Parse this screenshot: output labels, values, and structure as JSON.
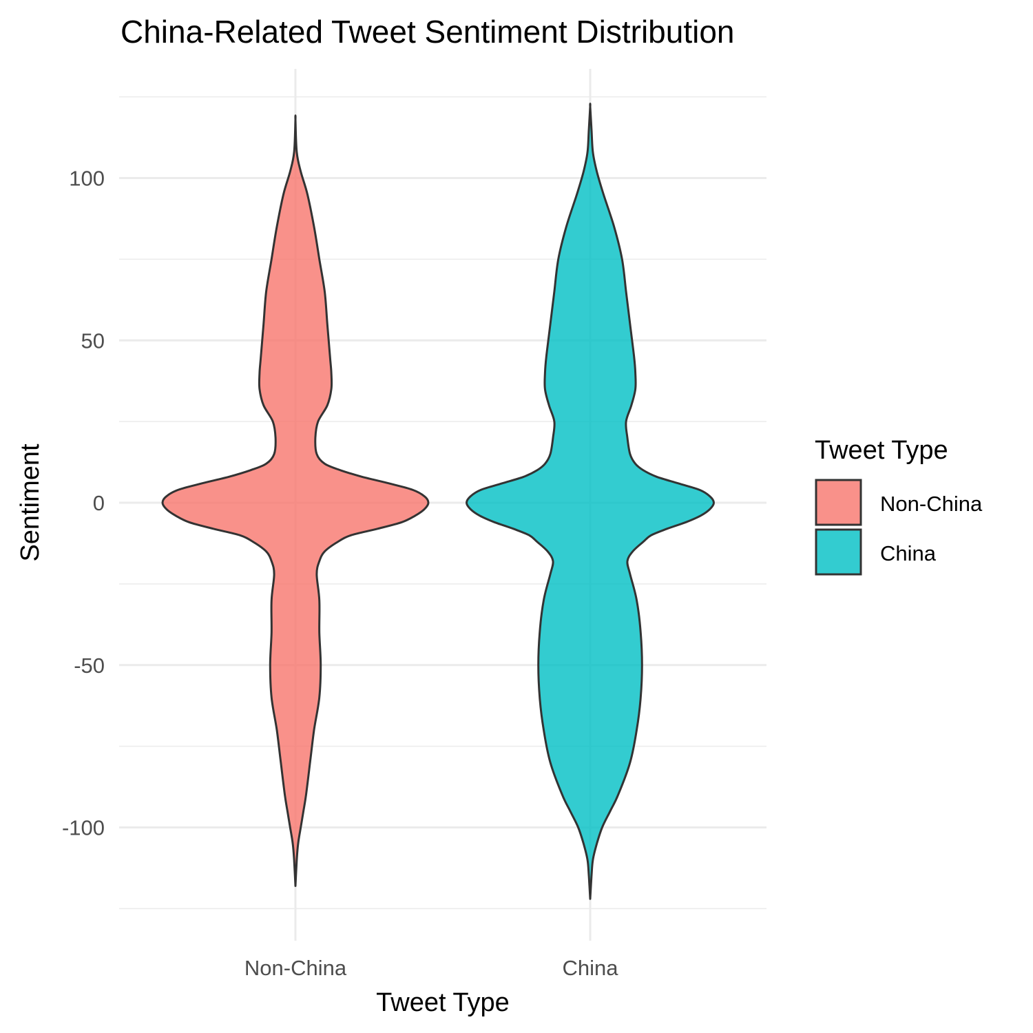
{
  "chart_data": {
    "type": "violin",
    "title": "China-Related Tweet Sentiment Distribution",
    "xlabel": "Tweet Type",
    "ylabel": "Sentiment",
    "categories": [
      "Non-China",
      "China"
    ],
    "y_ticks": [
      -100,
      -50,
      0,
      50,
      100
    ],
    "ylim": [
      -125,
      125
    ],
    "grid": true,
    "legend": {
      "title": "Tweet Type",
      "position": "right"
    },
    "series": [
      {
        "name": "Non-China",
        "color": "#F8766D",
        "y_range": [
          -118,
          118
        ],
        "density_profile": [
          [
            -118,
            0.0
          ],
          [
            -110,
            0.01
          ],
          [
            -105,
            0.02
          ],
          [
            -100,
            0.04
          ],
          [
            -95,
            0.06
          ],
          [
            -90,
            0.08
          ],
          [
            -80,
            0.11
          ],
          [
            -70,
            0.14
          ],
          [
            -60,
            0.18
          ],
          [
            -50,
            0.19
          ],
          [
            -40,
            0.18
          ],
          [
            -30,
            0.18
          ],
          [
            -22,
            0.16
          ],
          [
            -18,
            0.18
          ],
          [
            -15,
            0.22
          ],
          [
            -12,
            0.32
          ],
          [
            -10,
            0.42
          ],
          [
            -8,
            0.62
          ],
          [
            -6,
            0.8
          ],
          [
            -4,
            0.9
          ],
          [
            -2,
            0.97
          ],
          [
            0,
            1.0
          ],
          [
            2,
            0.97
          ],
          [
            4,
            0.88
          ],
          [
            6,
            0.7
          ],
          [
            8,
            0.5
          ],
          [
            10,
            0.34
          ],
          [
            12,
            0.22
          ],
          [
            15,
            0.16
          ],
          [
            20,
            0.15
          ],
          [
            25,
            0.17
          ],
          [
            30,
            0.24
          ],
          [
            35,
            0.27
          ],
          [
            40,
            0.27
          ],
          [
            45,
            0.26
          ],
          [
            55,
            0.24
          ],
          [
            65,
            0.22
          ],
          [
            75,
            0.18
          ],
          [
            85,
            0.14
          ],
          [
            95,
            0.09
          ],
          [
            102,
            0.04
          ],
          [
            108,
            0.01
          ],
          [
            118,
            0.0
          ]
        ]
      },
      {
        "name": "China",
        "color": "#00BFC4",
        "y_range": [
          -122,
          122
        ],
        "density_profile": [
          [
            -122,
            0.0
          ],
          [
            -115,
            0.01
          ],
          [
            -110,
            0.02
          ],
          [
            -105,
            0.05
          ],
          [
            -100,
            0.09
          ],
          [
            -95,
            0.15
          ],
          [
            -90,
            0.21
          ],
          [
            -80,
            0.3
          ],
          [
            -70,
            0.35
          ],
          [
            -60,
            0.38
          ],
          [
            -50,
            0.39
          ],
          [
            -40,
            0.38
          ],
          [
            -30,
            0.35
          ],
          [
            -22,
            0.3
          ],
          [
            -18,
            0.28
          ],
          [
            -15,
            0.32
          ],
          [
            -12,
            0.4
          ],
          [
            -10,
            0.46
          ],
          [
            -8,
            0.58
          ],
          [
            -6,
            0.72
          ],
          [
            -4,
            0.83
          ],
          [
            -2,
            0.9
          ],
          [
            0,
            0.93
          ],
          [
            2,
            0.9
          ],
          [
            4,
            0.82
          ],
          [
            6,
            0.66
          ],
          [
            8,
            0.5
          ],
          [
            10,
            0.4
          ],
          [
            12,
            0.34
          ],
          [
            15,
            0.3
          ],
          [
            20,
            0.28
          ],
          [
            25,
            0.27
          ],
          [
            30,
            0.31
          ],
          [
            35,
            0.34
          ],
          [
            40,
            0.34
          ],
          [
            45,
            0.33
          ],
          [
            55,
            0.3
          ],
          [
            65,
            0.27
          ],
          [
            75,
            0.24
          ],
          [
            85,
            0.18
          ],
          [
            95,
            0.1
          ],
          [
            102,
            0.05
          ],
          [
            108,
            0.02
          ],
          [
            115,
            0.01
          ],
          [
            122,
            0.0
          ]
        ]
      }
    ]
  }
}
